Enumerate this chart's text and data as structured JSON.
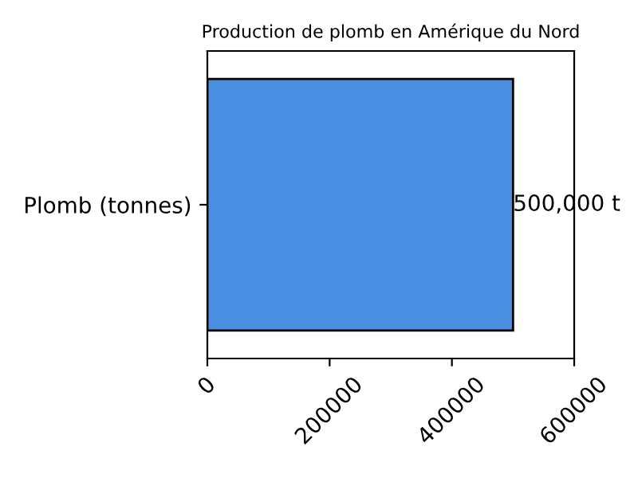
{
  "chart_data": {
    "type": "bar",
    "orientation": "horizontal",
    "title": "Production de plomb en Amérique du Nord",
    "categories": [
      "Plomb (tonnes)"
    ],
    "values": [
      500000
    ],
    "color": "#4a90e2",
    "value_labels": [
      "500,000 t"
    ],
    "xlim": [
      0,
      600000
    ],
    "xticks": [
      0,
      200000,
      400000,
      600000
    ],
    "grid": false,
    "legend": false
  }
}
